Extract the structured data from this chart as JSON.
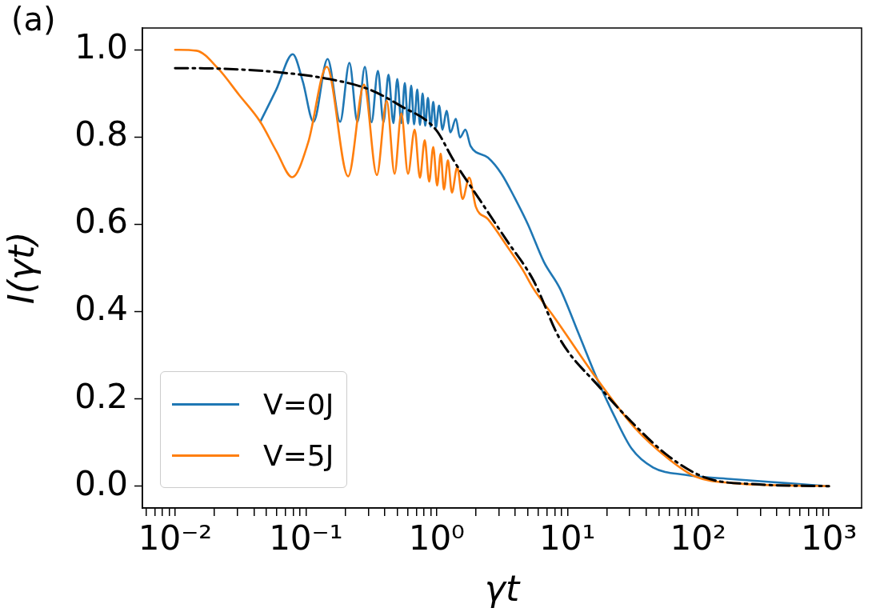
{
  "chart_data": {
    "type": "line",
    "xlabel": "γt",
    "ylabel": "I(γt)",
    "annotations": [
      "(a)"
    ],
    "log": "x",
    "grid": false,
    "legend": "lower left",
    "marker": "none",
    "xlim": [
      0.00562,
      1778
    ],
    "xticks": [
      {
        "value": 0.006,
        "label": null
      },
      {
        "value": 0.007,
        "label": null
      },
      {
        "value": 0.008,
        "label": null
      },
      {
        "value": 0.009,
        "label": null
      },
      {
        "value": 0.01,
        "label": "10⁻²"
      },
      {
        "value": 0.02,
        "label": null
      },
      {
        "value": 0.03,
        "label": null
      },
      {
        "value": 0.04,
        "label": null
      },
      {
        "value": 0.05,
        "label": null
      },
      {
        "value": 0.06,
        "label": null
      },
      {
        "value": 0.07,
        "label": null
      },
      {
        "value": 0.08,
        "label": null
      },
      {
        "value": 0.09,
        "label": null
      },
      {
        "value": 0.1,
        "label": "10⁻¹"
      },
      {
        "value": 0.2,
        "label": null
      },
      {
        "value": 0.3,
        "label": null
      },
      {
        "value": 0.4,
        "label": null
      },
      {
        "value": 0.5,
        "label": null
      },
      {
        "value": 0.6,
        "label": null
      },
      {
        "value": 0.7,
        "label": null
      },
      {
        "value": 0.8,
        "label": null
      },
      {
        "value": 0.9,
        "label": null
      },
      {
        "value": 1,
        "label": "10⁰"
      },
      {
        "value": 2,
        "label": null
      },
      {
        "value": 3,
        "label": null
      },
      {
        "value": 4,
        "label": null
      },
      {
        "value": 5,
        "label": null
      },
      {
        "value": 6,
        "label": null
      },
      {
        "value": 7,
        "label": null
      },
      {
        "value": 8,
        "label": null
      },
      {
        "value": 9,
        "label": null
      },
      {
        "value": 10,
        "label": "10¹"
      },
      {
        "value": 20,
        "label": null
      },
      {
        "value": 30,
        "label": null
      },
      {
        "value": 40,
        "label": null
      },
      {
        "value": 50,
        "label": null
      },
      {
        "value": 60,
        "label": null
      },
      {
        "value": 70,
        "label": null
      },
      {
        "value": 80,
        "label": null
      },
      {
        "value": 90,
        "label": null
      },
      {
        "value": 100,
        "label": "10²"
      },
      {
        "value": 200,
        "label": null
      },
      {
        "value": 300,
        "label": null
      },
      {
        "value": 400,
        "label": null
      },
      {
        "value": 500,
        "label": null
      },
      {
        "value": 600,
        "label": null
      },
      {
        "value": 700,
        "label": null
      },
      {
        "value": 800,
        "label": null
      },
      {
        "value": 900,
        "label": null
      },
      {
        "value": 1000,
        "label": "10³"
      }
    ],
    "ylim": [
      -0.05,
      1.05
    ],
    "yticks": [
      {
        "value": 0,
        "label": "0.0"
      },
      {
        "value": 0.2,
        "label": "0.2"
      },
      {
        "value": 0.4,
        "label": "0.4"
      },
      {
        "value": 0.6,
        "label": "0.6"
      },
      {
        "value": 0.8,
        "label": "0.8"
      },
      {
        "value": 1,
        "label": "1.0"
      }
    ],
    "series": [
      {
        "name": "V=0J",
        "color": "#1f77b4",
        "line_style": "solid",
        "x": [
          0.0448,
          0.0594,
          0.0793,
          0.0948,
          0.1143,
          0.1466,
          0.1828,
          0.2153,
          0.2477,
          0.2826,
          0.3177,
          0.3556,
          0.392,
          0.4285,
          0.4667,
          0.5,
          0.537,
          0.571,
          0.604,
          0.639,
          0.672,
          0.711,
          0.745,
          0.781,
          0.818,
          0.858,
          0.899,
          0.942,
          0.987,
          1.044,
          1.109,
          1.19,
          1.277,
          1.403,
          1.507,
          1.66,
          1.815,
          2.47,
          3.13,
          3.95,
          4.99,
          6.61,
          8.77,
          12.2,
          16.9,
          22.4,
          31.0,
          45.2,
          79.3,
          184.5,
          470,
          1000
        ],
        "values": [
          0.835,
          0.909,
          0.99,
          0.927,
          0.835,
          0.979,
          0.835,
          0.97,
          0.835,
          0.961,
          0.834,
          0.952,
          0.834,
          0.943,
          0.832,
          0.933,
          0.832,
          0.924,
          0.831,
          0.918,
          0.829,
          0.909,
          0.828,
          0.9,
          0.826,
          0.89,
          0.824,
          0.881,
          0.822,
          0.872,
          0.817,
          0.86,
          0.811,
          0.842,
          0.799,
          0.817,
          0.78,
          0.753,
          0.716,
          0.661,
          0.6,
          0.514,
          0.453,
          0.349,
          0.245,
          0.166,
          0.086,
          0.043,
          0.026,
          0.016,
          0.007,
          0.0
        ]
      },
      {
        "name": "V=5J",
        "color": "#ff7f0e",
        "line_style": "solid",
        "x": [
          0.01,
          0.01456,
          0.0212,
          0.0308,
          0.0448,
          0.0594,
          0.0787,
          0.104,
          0.1445,
          0.2104,
          0.2786,
          0.349,
          0.415,
          0.477,
          0.537,
          0.604,
          0.679,
          0.745,
          0.811,
          0.877,
          0.942,
          1.009,
          1.074,
          1.137,
          1.219,
          1.309,
          1.436,
          1.578,
          1.774,
          1.995,
          2.47,
          3.44,
          4.55,
          5.49,
          7.98,
          16.9,
          32.5,
          59.8,
          95.5,
          184.5,
          1000
        ],
        "values": [
          1.0,
          0.998,
          0.958,
          0.897,
          0.835,
          0.768,
          0.708,
          0.787,
          0.961,
          0.71,
          0.92,
          0.713,
          0.883,
          0.716,
          0.854,
          0.716,
          0.817,
          0.707,
          0.793,
          0.698,
          0.777,
          0.689,
          0.762,
          0.68,
          0.747,
          0.673,
          0.731,
          0.658,
          0.707,
          0.64,
          0.612,
          0.551,
          0.496,
          0.453,
          0.386,
          0.245,
          0.135,
          0.062,
          0.022,
          0.007,
          0.0
        ]
      },
      {
        "color": "#000000",
        "line_style": "dashdot",
        "x": [
          0.01,
          0.0212,
          0.0594,
          0.151,
          0.306,
          0.527,
          0.987,
          1.346,
          2.15,
          3.44,
          5.49,
          8.77,
          17.6,
          31.0,
          59.8,
          115,
          294,
          1000
        ],
        "values": [
          0.958,
          0.957,
          0.949,
          0.933,
          0.909,
          0.872,
          0.817,
          0.747,
          0.655,
          0.563,
          0.472,
          0.337,
          0.227,
          0.147,
          0.068,
          0.019,
          0.004,
          0.0
        ]
      }
    ]
  }
}
